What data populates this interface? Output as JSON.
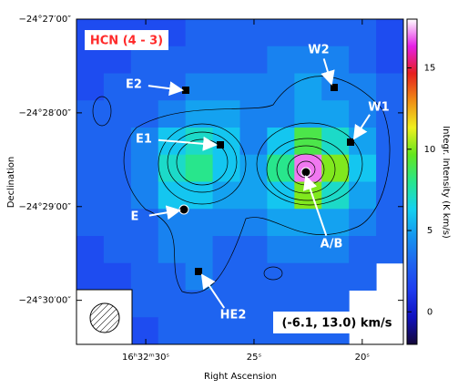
{
  "chart_data": {
    "type": "heatmap",
    "title": "HCN (4 - 3)",
    "velocity_range": "(-6.1, 13.0) km/s",
    "xlabel": "Right Ascension",
    "ylabel": "Declination",
    "colorbar_label": "Integr. Intensity (K km/s)",
    "xlim": [
      33.2,
      18.1
    ],
    "xticks": [
      {
        "value": 30,
        "label": "16ʰ32ᵐ30ˢ"
      },
      {
        "value": 25,
        "label": "25ˢ"
      },
      {
        "value": 20,
        "label": "20ˢ"
      }
    ],
    "ylim": [
      30.47,
      27.0
    ],
    "yticks": [
      {
        "value": 27,
        "label": "−24°27′00″"
      },
      {
        "value": 28,
        "label": "−24°28′00″"
      },
      {
        "value": 29,
        "label": "−24°29′00″"
      },
      {
        "value": 30,
        "label": "−24°30′00″"
      }
    ],
    "clim": [
      -2,
      18
    ],
    "cticks": [
      0,
      5,
      10,
      15
    ],
    "colormap": [
      "#140838",
      "#1010c0",
      "#1e3cf0",
      "#1e64f0",
      "#1496f0",
      "#14d2f0",
      "#28e68c",
      "#64e61e",
      "#f0f01e",
      "#f08c14",
      "#e61e1e",
      "#e61ee6",
      "#ffffff"
    ],
    "annotations": [
      "E2",
      "W2",
      "W1",
      "E1",
      "E",
      "A/B",
      "HE2"
    ],
    "z": [
      [
        2,
        2,
        2,
        2,
        3,
        3,
        3,
        3,
        3,
        3,
        3,
        2
      ],
      [
        2,
        2,
        3,
        3,
        3,
        3,
        3,
        4,
        4,
        4,
        3,
        2
      ],
      [
        2,
        3,
        3,
        3,
        4,
        4,
        4,
        4,
        5,
        4,
        4,
        3
      ],
      [
        3,
        3,
        3,
        4,
        5,
        5,
        4,
        4,
        5,
        5,
        4,
        3
      ],
      [
        3,
        3,
        4,
        6,
        7,
        6,
        4,
        6,
        9,
        7,
        5,
        3
      ],
      [
        3,
        3,
        4,
        7,
        8,
        6,
        5,
        8,
        17,
        10,
        6,
        3
      ],
      [
        3,
        3,
        4,
        6,
        6,
        5,
        5,
        6,
        10,
        7,
        5,
        3
      ],
      [
        3,
        3,
        3,
        4,
        4,
        4,
        4,
        5,
        5,
        5,
        4,
        3
      ],
      [
        2,
        3,
        3,
        4,
        4,
        3,
        3,
        4,
        4,
        4,
        3,
        3
      ],
      [
        2,
        2,
        3,
        3,
        4,
        3,
        3,
        3,
        3,
        3,
        3,
        null
      ],
      [
        2,
        2,
        3,
        3,
        3,
        3,
        3,
        3,
        3,
        3,
        null,
        null
      ],
      [
        2,
        2,
        2,
        3,
        3,
        3,
        3,
        3,
        3,
        3,
        null,
        null
      ]
    ]
  }
}
